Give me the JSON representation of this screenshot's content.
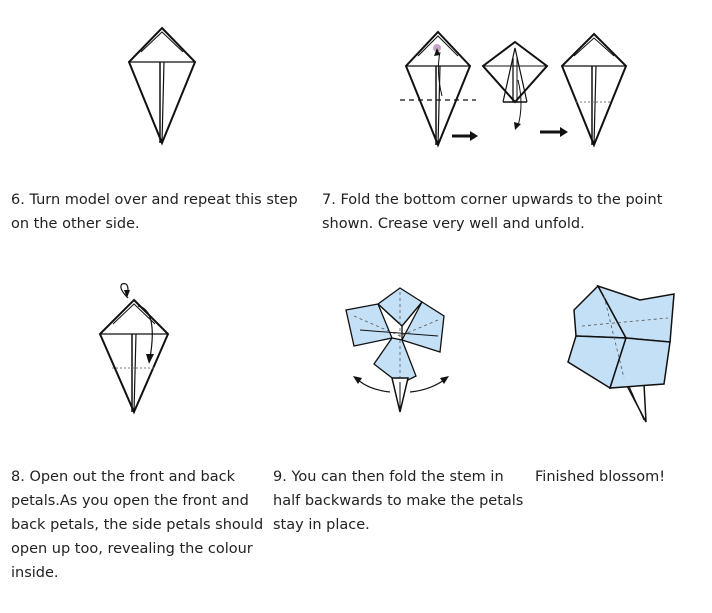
{
  "steps": {
    "step6": {
      "caption": "6. Turn model over and repeat this step on the other side."
    },
    "step7": {
      "caption": "7. Fold the bottom corner upwards to the point shown. Crease very well and unfold."
    },
    "step8": {
      "caption": "8. Open out the front and back petals.As you open the front and back petals, the side petals should open up too, revealing the colour inside."
    },
    "step9": {
      "caption": "9. You can then fold the stem in half backwards to make the petals stay in place."
    },
    "finished": {
      "caption": "Finished blossom!"
    }
  },
  "colors": {
    "paper": "#ffffff",
    "line": "#111111",
    "petal": "#c4e0f6",
    "marker": "#c9a2c8"
  }
}
